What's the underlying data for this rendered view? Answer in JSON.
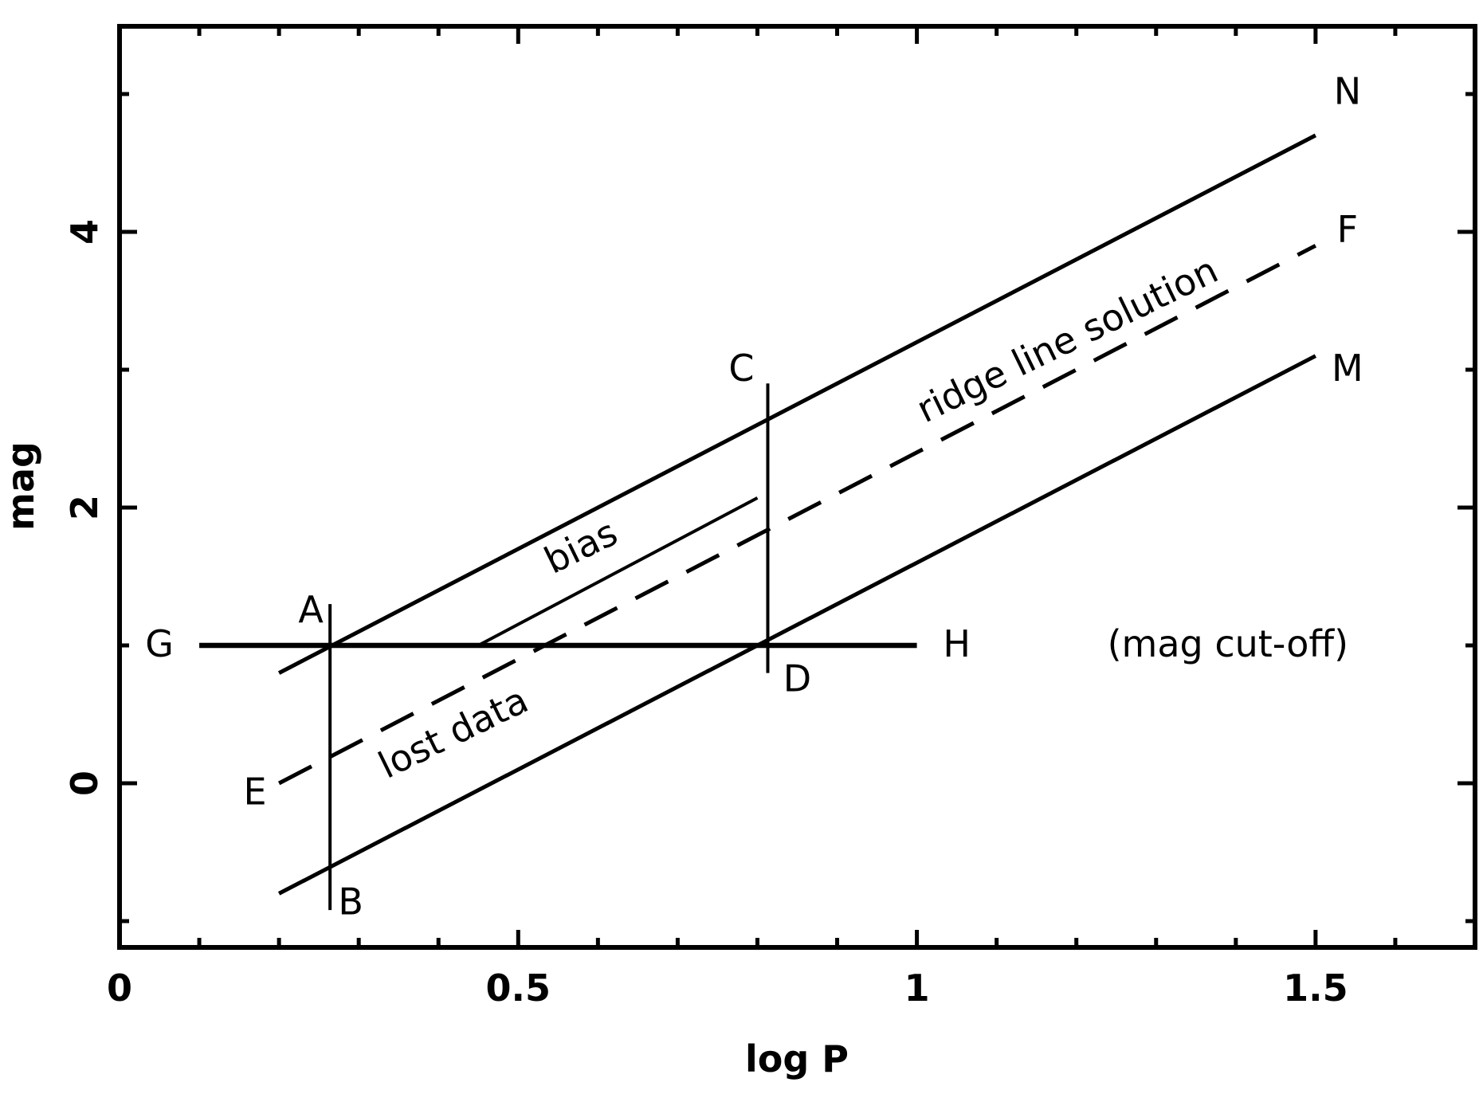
{
  "chart_data": {
    "type": "line",
    "title": "",
    "xlabel": "log P",
    "ylabel": "mag",
    "xlim": [
      0,
      1.7
    ],
    "ylim": [
      -1.2,
      5.5
    ],
    "grid": false,
    "x_ticks": [
      {
        "value": 0,
        "label": "0"
      },
      {
        "value": 0.5,
        "label": "0.5"
      },
      {
        "value": 1,
        "label": "1"
      },
      {
        "value": 1.5,
        "label": "1.5"
      }
    ],
    "y_ticks": [
      {
        "value": 0,
        "label": "0"
      },
      {
        "value": 2,
        "label": "2"
      },
      {
        "value": 4,
        "label": "4"
      }
    ],
    "x_minor_ticks": [
      0.1,
      0.2,
      0.3,
      0.4,
      0.6,
      0.7,
      0.8,
      0.9,
      1.1,
      1.2,
      1.3,
      1.4,
      1.6
    ],
    "y_minor_ticks": [
      -1,
      1,
      3,
      5
    ],
    "lines": [
      {
        "id": "upper",
        "style": "solid",
        "width": "thick",
        "x": [
          0.2,
          1.5
        ],
        "y": [
          0.8,
          4.7
        ]
      },
      {
        "id": "lower",
        "style": "solid",
        "width": "thick",
        "x": [
          0.2,
          1.5
        ],
        "y": [
          -0.8,
          3.1
        ]
      },
      {
        "id": "ridge",
        "style": "dashed",
        "width": "thick",
        "x": [
          0.2,
          1.5
        ],
        "y": [
          0.0,
          3.9
        ]
      },
      {
        "id": "cutoff",
        "style": "solid",
        "width": "thicker",
        "x": [
          0.1,
          1.0
        ],
        "y": [
          1.0,
          1.0
        ]
      },
      {
        "id": "biased",
        "style": "solid",
        "width": "thin",
        "x": [
          0.45,
          0.8
        ],
        "y": [
          1.0,
          2.07
        ]
      },
      {
        "id": "vertical-AB",
        "style": "solid",
        "width": "thin",
        "x": [
          0.264,
          0.264
        ],
        "y": [
          1.3,
          -0.92
        ]
      },
      {
        "id": "vertical-CD",
        "style": "solid",
        "width": "thin",
        "x": [
          0.813,
          0.813
        ],
        "y": [
          2.9,
          0.8
        ]
      }
    ],
    "annotations": [
      {
        "text": "N",
        "x": 1.54,
        "y": 5.0
      },
      {
        "text": "F",
        "x": 1.54,
        "y": 4.0
      },
      {
        "text": "M",
        "x": 1.54,
        "y": 2.99
      },
      {
        "text": "C",
        "x": 0.78,
        "y": 2.99
      },
      {
        "text": "A",
        "x": 0.24,
        "y": 1.24
      },
      {
        "text": "G",
        "x": 0.05,
        "y": 0.99
      },
      {
        "text": "H",
        "x": 1.05,
        "y": 0.99
      },
      {
        "text": "D",
        "x": 0.85,
        "y": 0.74
      },
      {
        "text": "E",
        "x": 0.17,
        "y": -0.08
      },
      {
        "text": "B",
        "x": 0.29,
        "y": -0.88
      },
      {
        "text": "(mag cut-off)",
        "x": 1.39,
        "y": 0.99
      },
      {
        "text": "bias",
        "x": 0.58,
        "y": 1.7,
        "rotate": -26
      },
      {
        "text": "ridge line solution",
        "x": 1.19,
        "y": 3.2,
        "rotate": -26
      },
      {
        "text": "lost data",
        "x": 0.42,
        "y": 0.35,
        "rotate": -26
      }
    ]
  }
}
